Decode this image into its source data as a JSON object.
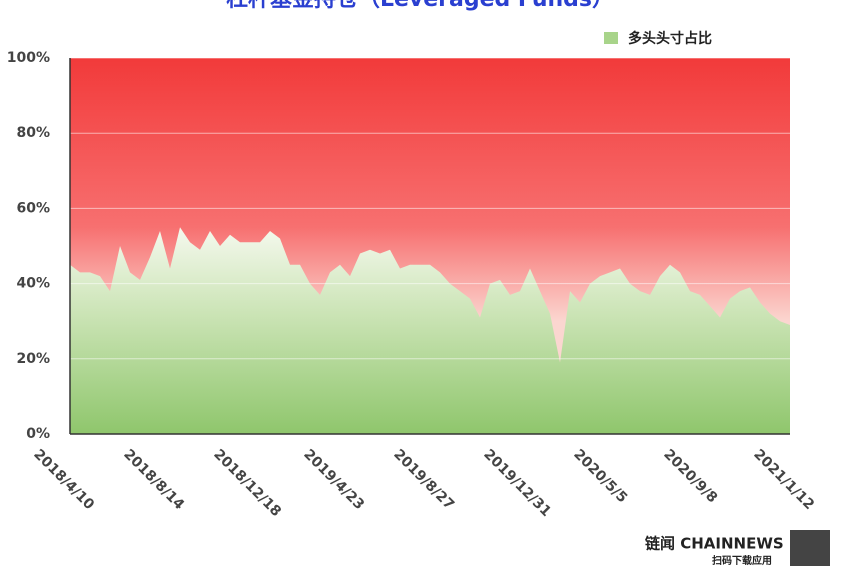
{
  "chart_data": {
    "type": "area",
    "title": "杠杆基金持仓（Leveraged Funds）",
    "categories": [
      "2018/4/10",
      null,
      null,
      null,
      null,
      null,
      null,
      null,
      null,
      "2018/8/14",
      null,
      null,
      null,
      null,
      null,
      null,
      null,
      null,
      "2018/12/18",
      null,
      null,
      null,
      null,
      null,
      null,
      null,
      null,
      "2019/4/23",
      null,
      null,
      null,
      null,
      null,
      null,
      null,
      null,
      "2019/8/27",
      null,
      null,
      null,
      null,
      null,
      null,
      null,
      null,
      "2019/12/31",
      null,
      null,
      null,
      null,
      null,
      null,
      null,
      null,
      "2020/5/5",
      null,
      null,
      null,
      null,
      null,
      null,
      null,
      null,
      "2020/9/8",
      null,
      null,
      null,
      null,
      null,
      null,
      null,
      null,
      "2021/1/12"
    ],
    "series": [
      {
        "name": "多头头寸占比",
        "color": "#a8d48a",
        "values": [
          45,
          43,
          43,
          42,
          38,
          50,
          43,
          41,
          47,
          54,
          44,
          55,
          51,
          49,
          54,
          50,
          53,
          51,
          51,
          51,
          54,
          52,
          45,
          45,
          40,
          37,
          43,
          45,
          42,
          48,
          49,
          48,
          49,
          44,
          45,
          45,
          45,
          43,
          40,
          38,
          36,
          31,
          40,
          41,
          37,
          38,
          44,
          38,
          32,
          19,
          38,
          35,
          40,
          42,
          43,
          44,
          40,
          38,
          37,
          42,
          45,
          43,
          38,
          37,
          34,
          31,
          36,
          38,
          39,
          35,
          32,
          30,
          29
        ]
      }
    ],
    "ylim": [
      0,
      100
    ],
    "yticks": [
      {
        "value": 0,
        "label": "0%"
      },
      {
        "value": 20,
        "label": "20%"
      },
      {
        "value": 40,
        "label": "40%"
      },
      {
        "value": 60,
        "label": "60%"
      },
      {
        "value": 80,
        "label": "80%"
      },
      {
        "value": 100,
        "label": "100%"
      }
    ],
    "grid": true,
    "legend": "top-right"
  },
  "footer": {
    "brand": "链闻 CHAINNEWS",
    "caption": "扫码下载应用"
  }
}
